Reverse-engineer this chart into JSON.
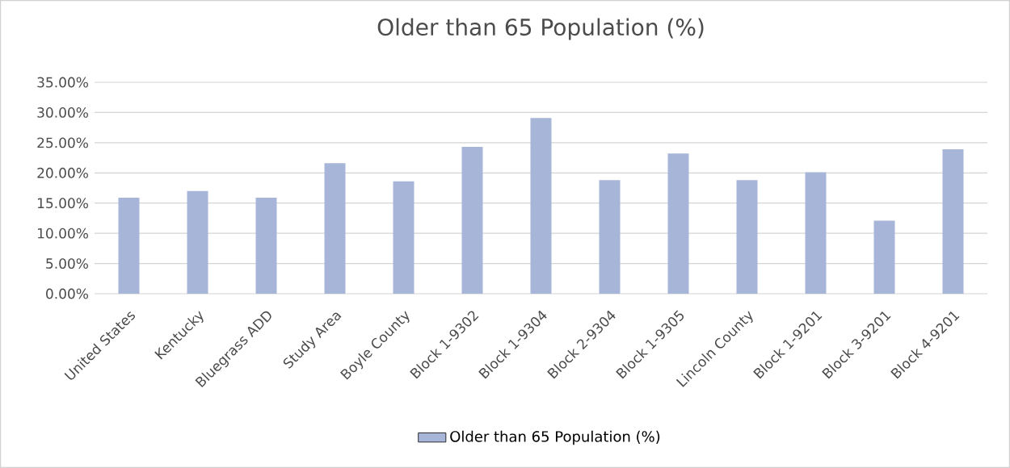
{
  "chart_data": {
    "type": "bar",
    "title": "Older than 65 Population (%)",
    "categories": [
      "United States",
      "Kentucky",
      "Bluegrass ADD",
      "Study Area",
      "Boyle County",
      "Block 1-9302",
      "Block 1-9304",
      "Block 2-9304",
      "Block 1-9305",
      "Lincoln County",
      "Block 1-9201",
      "Block 3-9201",
      "Block 4-9201"
    ],
    "series": [
      {
        "name": "Older than 65 Population (%)",
        "color": "#a7b5d9",
        "values": [
          15.9,
          17.0,
          15.9,
          21.6,
          18.6,
          24.3,
          29.1,
          18.8,
          23.2,
          18.8,
          20.1,
          12.1,
          23.9
        ]
      }
    ],
    "ylim": [
      0,
      35
    ],
    "yticks": [
      {
        "value": 0,
        "label": "0.00%"
      },
      {
        "value": 5,
        "label": "5.00%"
      },
      {
        "value": 10,
        "label": "10.00%"
      },
      {
        "value": 15,
        "label": "15.00%"
      },
      {
        "value": 20,
        "label": "20.00%"
      },
      {
        "value": 25,
        "label": "25.00%"
      },
      {
        "value": 30,
        "label": "30.00%"
      },
      {
        "value": 35,
        "label": "35.00%"
      }
    ],
    "grid": "y",
    "legend": "bottom"
  }
}
